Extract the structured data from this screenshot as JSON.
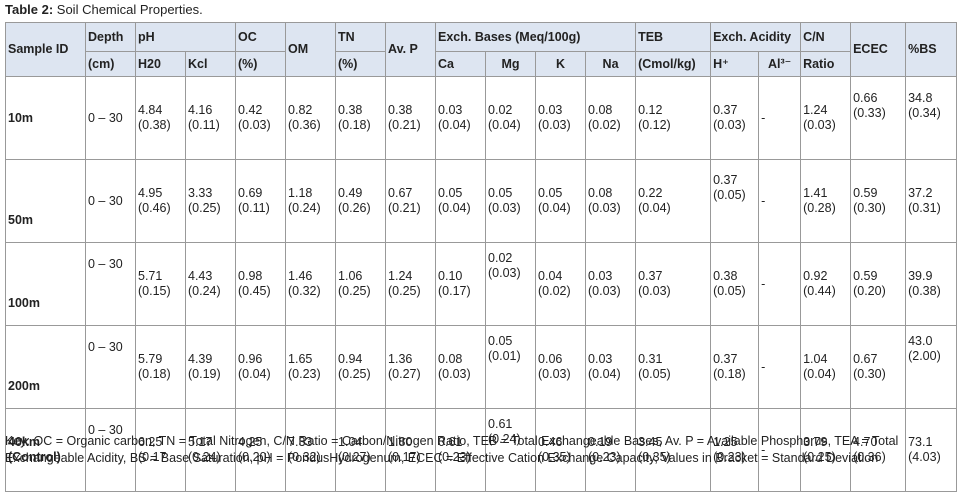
{
  "caption": {
    "label": "Table 2:",
    "text": " Soil Chemical Properties."
  },
  "headers": {
    "sample_id": "Sample ID",
    "depth": "Depth",
    "depth_unit": "(cm)",
    "ph": "pH",
    "h20": "H20",
    "kcl": "Kcl",
    "oc": "OC",
    "oc_unit": "(%)",
    "om": "OM",
    "tn": "TN",
    "tn_unit": "(%)",
    "avp": "Av. P",
    "exch_bases": "Exch. Bases (Meq/100g)",
    "ca": "Ca",
    "mg": "Mg",
    "k": "K",
    "na": "Na",
    "teb": "TEB",
    "teb_unit": "(Cmol/kg)",
    "exch_acidity": "Exch. Acidity",
    "h": "H⁺",
    "al": "Al³⁻",
    "cn": "C/N",
    "cn_unit": "Ratio",
    "ecec": "ECEC",
    "bs": "%BS"
  },
  "rows": [
    {
      "id": "10m",
      "depth": "0 – 30",
      "h20": "4.84",
      "h20_sd": "(0.38)",
      "kcl": "4.16",
      "kcl_sd": "(0.11)",
      "oc": "0.42",
      "oc_sd": "(0.03)",
      "om": "0.82",
      "om_sd": "(0.36)",
      "tn": "0.38",
      "tn_sd": "(0.18)",
      "avp": "0.38",
      "avp_sd": "(0.21)",
      "ca": "0.03",
      "ca_sd": "(0.04)",
      "mg": "0.02",
      "mg_sd": "(0.04)",
      "k": "0.03",
      "k_sd": "(0.03)",
      "na": "0.08",
      "na_sd": "(0.02)",
      "teb": "0.12",
      "teb_sd": "(0.12)",
      "h": "0.37",
      "h_sd": "(0.03)",
      "al": "-",
      "cn": "1.24",
      "cn_sd": "(0.03)",
      "ecec": "0.66",
      "ecec_sd": "(0.33)",
      "bs": "34.8",
      "bs_sd": "(0.34)"
    },
    {
      "id": "50m",
      "depth": "0 – 30",
      "h20": "4.95",
      "h20_sd": "(0.46)",
      "kcl": "3.33",
      "kcl_sd": "(0.25)",
      "oc": "0.69",
      "oc_sd": "(0.11)",
      "om": "1.18",
      "om_sd": "(0.24)",
      "tn": "0.49",
      "tn_sd": "(0.26)",
      "avp": "0.67",
      "avp_sd": "(0.21)",
      "ca": "0.05",
      "ca_sd": "(0.04)",
      "mg": "0.05",
      "mg_sd": "(0.03)",
      "k": "0.05",
      "k_sd": "(0.04)",
      "na": "0.08",
      "na_sd": "(0.03)",
      "teb": "0.22",
      "teb_sd": "(0.04)",
      "h": "0.37",
      "h_sd": "(0.05)",
      "al": "-",
      "cn": "1.41",
      "cn_sd": "(0.28)",
      "ecec": "0.59",
      "ecec_sd": "(0.30)",
      "bs": "37.2",
      "bs_sd": "(0.31)"
    },
    {
      "id": "100m",
      "depth": "0 – 30",
      "h20": "5.71",
      "h20_sd": "(0.15)",
      "kcl": "4.43",
      "kcl_sd": "(0.24)",
      "oc": "0.98",
      "oc_sd": "(0.45)",
      "om": "1.46",
      "om_sd": "(0.32)",
      "tn": "1.06",
      "tn_sd": "(0.25)",
      "avp": "1.24",
      "avp_sd": "(0.25)",
      "ca": "0.10",
      "ca_sd": "(0.17)",
      "mg": "0.02",
      "mg_sd": "(0.03)",
      "k": "0.04",
      "k_sd": "(0.02)",
      "na": "0.03",
      "na_sd": "(0.03)",
      "teb": "0.37",
      "teb_sd": "(0.03)",
      "h": "0.38",
      "h_sd": "(0.05)",
      "al": "-",
      "cn": "0.92",
      "cn_sd": "(0.44)",
      "ecec": "0.59",
      "ecec_sd": "(0.20)",
      "bs": "39.9",
      "bs_sd": "(0.38)"
    },
    {
      "id": "200m",
      "depth": "0 – 30",
      "h20": "5.79",
      "h20_sd": "(0.18)",
      "kcl": "4.39",
      "kcl_sd": "(0.19)",
      "oc": "0.96",
      "oc_sd": "(0.04)",
      "om": "1.65",
      "om_sd": "(0.23)",
      "tn": "0.94",
      "tn_sd": "(0.25)",
      "avp": "1.36",
      "avp_sd": "(0.27)",
      "ca": "0.08",
      "ca_sd": "(0.03)",
      "mg": "0.05",
      "mg_sd": "(0.01)",
      "k": "0.06",
      "k_sd": "(0.03)",
      "na": "0.03",
      "na_sd": "(0.04)",
      "teb": "0.31",
      "teb_sd": "(0.05)",
      "h": "0.37",
      "h_sd": "(0.18)",
      "al": "-",
      "cn": "1.04",
      "cn_sd": "(0.04)",
      "ecec": "0.67",
      "ecec_sd": "(0.30)",
      "bs": "43.0",
      "bs_sd": "(2.00)"
    },
    {
      "id": "40km",
      "id2": "(Control)",
      "depth": "0 – 30",
      "h20": "6.25",
      "h20_sd": "(0.17",
      "kcl": "5.17",
      "kcl_sd": "(0.24)",
      "oc": "4.25",
      "oc_sd": "(0.20)",
      "om": "7.33",
      "om_sd": "(0.32)",
      "tn": "1.04",
      "tn_sd": "(0.27)",
      "avp": "1.80",
      "avp_sd": "(0.17)",
      "ca": "0.61",
      "ca_sd": "(0.23)",
      "mg": "0.61",
      "mg_sd": "(0.24)",
      "k": "0.46",
      "k_sd": "(0.35)",
      "na": "0.19",
      "na_sd": "(0.23)",
      "teb": "3.45",
      "teb_sd": "(0.35)",
      "h": "1.25",
      "h_sd": "(0.23)",
      "al": "-",
      "cn": "3.79",
      "cn_sd": "(0.25)",
      "ecec": "4.70",
      "ecec_sd": "(0.36)",
      "bs": "73.1",
      "bs_sd": "(4.03)"
    }
  ],
  "key": "Key: OC = Organic carbon, TN = Total Nitrogen, C/N Ratio = Carbon/Nitrogen Ratio, TEB = Total Exchangeable Bases, Av. P = Available Phosphorus, TEA = Total Exchangeable Acidity, BS = Base Saturation, pH = PondusHydrogenum, ECEC = Effective Cation Exchange Capacity, Values in Bracket = Standard Deviation"
}
